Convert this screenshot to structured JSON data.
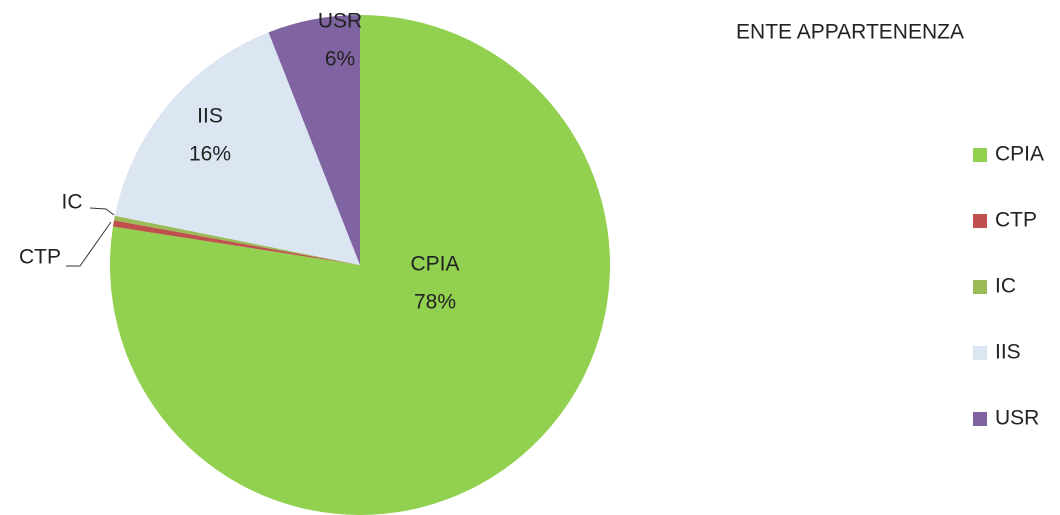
{
  "chart_data": {
    "type": "pie",
    "title": "ENTE APPARTENENZA",
    "categories": [
      "CPIA",
      "CTP",
      "IC",
      "IIS",
      "USR"
    ],
    "values": [
      78,
      0.4,
      0.3,
      16,
      6
    ],
    "value_labels": [
      "78%",
      null,
      null,
      "16%",
      "6%"
    ],
    "colors": [
      "#92d050",
      "#c0504d",
      "#9bbb59",
      "#dce6f2",
      "#8064a2"
    ],
    "legend": "right"
  }
}
